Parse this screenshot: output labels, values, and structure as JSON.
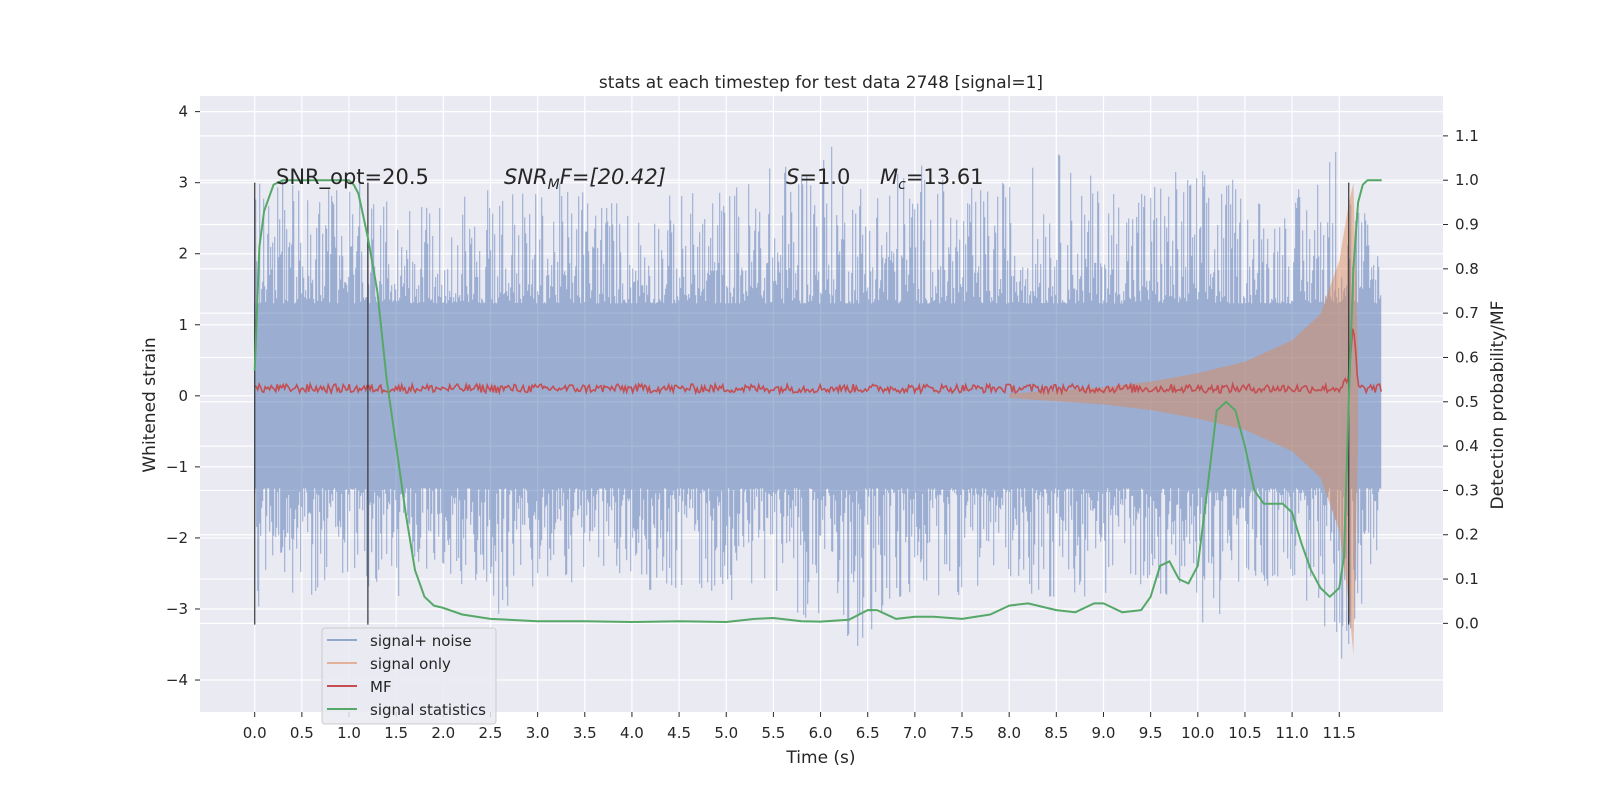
{
  "chart_data": {
    "type": "line",
    "title": "stats at each timestep for test data 2748 [signal=1]",
    "xlabel": "Time (s)",
    "ylabel_left": "Whitened strain",
    "ylabel_right": "Detection probability/MF",
    "xlim": [
      -0.58,
      12.6
    ],
    "ylim_left": [
      -4.45,
      4.22
    ],
    "ylim_right": [
      -0.2,
      1.19
    ],
    "x_ticks": [
      0.0,
      0.5,
      1.0,
      1.5,
      2.0,
      2.5,
      3.0,
      3.5,
      4.0,
      4.5,
      5.0,
      5.5,
      6.0,
      6.5,
      7.0,
      7.5,
      8.0,
      8.5,
      9.0,
      9.5,
      10.0,
      10.5,
      11.0,
      11.5
    ],
    "x_tick_labels": [
      "0.0",
      "0.5",
      "1.0",
      "1.5",
      "2.0",
      "2.5",
      "3.0",
      "3.5",
      "4.0",
      "4.5",
      "5.0",
      "5.5",
      "6.0",
      "6.5",
      "7.0",
      "7.5",
      "8.0",
      "8.5",
      "9.0",
      "9.5",
      "10.0",
      "10.5",
      "11.0",
      "11.5"
    ],
    "y_ticks_left": [
      -4,
      -3,
      -2,
      -1,
      0,
      1,
      2,
      3,
      4
    ],
    "y_tick_labels_left": [
      "−4",
      "−3",
      "−2",
      "−1",
      "0",
      "1",
      "2",
      "3",
      "4"
    ],
    "y_ticks_right": [
      0.0,
      0.1,
      0.2,
      0.3,
      0.4,
      0.5,
      0.6,
      0.7,
      0.8,
      0.9,
      1.0,
      1.1
    ],
    "y_tick_labels_right": [
      "0.0",
      "0.1",
      "0.2",
      "0.3",
      "0.4",
      "0.5",
      "0.6",
      "0.7",
      "0.8",
      "0.9",
      "1.0",
      "1.1"
    ],
    "grid": true,
    "legend_position": "lower-left",
    "annotations": {
      "snr_opt": "SNR_opt=20.5",
      "snr_mf_main": "SNR",
      "snr_mf_sub": "M",
      "snr_mf_rest": "F=[20.42]",
      "s_main": "S",
      "s_rest": "=1.0",
      "mc_main": "M",
      "mc_sub": "c",
      "mc_rest": "=13.61"
    },
    "vertical_markers": [
      {
        "x": 0.0,
        "ymin": -3.22,
        "ymax": 3.0
      },
      {
        "x": 1.2,
        "ymin": -3.22,
        "ymax": 3.0
      },
      {
        "x": 11.6,
        "ymin": -3.22,
        "ymax": 3.0
      }
    ],
    "series": [
      {
        "name": "signal+ noise",
        "color": "#4c72b0",
        "axis": "left",
        "envelope_x": [
          0.0,
          0.5,
          1.0,
          1.5,
          2.0,
          2.5,
          3.0,
          3.5,
          4.0,
          4.5,
          5.0,
          5.5,
          6.0,
          6.5,
          7.0,
          7.5,
          8.0,
          8.5,
          9.0,
          9.5,
          10.0,
          10.5,
          11.0,
          11.5,
          11.95
        ],
        "envelope_max": [
          3.0,
          3.3,
          3.1,
          2.7,
          2.9,
          3.2,
          2.9,
          3.1,
          2.7,
          2.9,
          3.0,
          3.3,
          3.7,
          3.1,
          3.4,
          2.9,
          3.1,
          3.5,
          3.0,
          3.2,
          3.3,
          3.0,
          2.8,
          3.8,
          2.1
        ],
        "envelope_min": [
          -3.2,
          -2.9,
          -2.6,
          -2.9,
          -2.5,
          -3.2,
          -2.8,
          -2.6,
          -2.7,
          -2.8,
          -2.9,
          -2.7,
          -3.4,
          -3.6,
          -2.9,
          -2.8,
          -2.6,
          -3.0,
          -2.8,
          -2.7,
          -3.3,
          -2.9,
          -2.6,
          -4.0,
          -2.0
        ]
      },
      {
        "name": "signal only",
        "color": "#dd8452",
        "axis": "left",
        "envelope_x": [
          8.0,
          9.0,
          9.5,
          10.0,
          10.5,
          11.0,
          11.3,
          11.5,
          11.6,
          11.65,
          11.7
        ],
        "envelope_max": [
          0.03,
          0.12,
          0.2,
          0.32,
          0.48,
          0.78,
          1.15,
          1.9,
          2.7,
          3.0,
          0.6
        ],
        "envelope_min": [
          -0.03,
          -0.12,
          -0.2,
          -0.32,
          -0.48,
          -0.78,
          -1.15,
          -1.9,
          -2.9,
          -3.65,
          -0.6
        ]
      },
      {
        "name": "MF",
        "color": "#c44e52",
        "axis": "right",
        "x": [
          0.0,
          0.5,
          1.0,
          1.5,
          2.0,
          2.5,
          3.0,
          3.5,
          4.0,
          4.5,
          5.0,
          5.5,
          6.0,
          6.5,
          7.0,
          7.5,
          8.0,
          8.5,
          9.0,
          9.5,
          10.0,
          10.5,
          11.0,
          11.5,
          11.6,
          11.65,
          11.7,
          11.95
        ],
        "y": [
          0.53,
          0.53,
          0.53,
          0.53,
          0.53,
          0.53,
          0.53,
          0.53,
          0.53,
          0.53,
          0.53,
          0.53,
          0.53,
          0.53,
          0.53,
          0.53,
          0.53,
          0.53,
          0.53,
          0.53,
          0.53,
          0.53,
          0.53,
          0.53,
          0.55,
          0.68,
          0.53,
          0.53
        ]
      },
      {
        "name": "signal statistics",
        "color": "#55a868",
        "axis": "right",
        "x": [
          0.0,
          0.05,
          0.1,
          0.15,
          0.2,
          0.3,
          0.5,
          0.8,
          1.0,
          1.05,
          1.1,
          1.15,
          1.2,
          1.3,
          1.4,
          1.5,
          1.6,
          1.7,
          1.8,
          1.9,
          2.0,
          2.2,
          2.5,
          3.0,
          3.5,
          4.0,
          4.5,
          5.0,
          5.3,
          5.5,
          5.8,
          6.0,
          6.3,
          6.5,
          6.6,
          6.8,
          7.0,
          7.2,
          7.5,
          7.8,
          8.0,
          8.2,
          8.5,
          8.7,
          8.9,
          9.0,
          9.2,
          9.4,
          9.5,
          9.6,
          9.7,
          9.8,
          9.9,
          10.0,
          10.1,
          10.2,
          10.3,
          10.4,
          10.5,
          10.6,
          10.7,
          10.8,
          10.9,
          11.0,
          11.1,
          11.2,
          11.3,
          11.4,
          11.5,
          11.55,
          11.6,
          11.65,
          11.7,
          11.75,
          11.8,
          11.85,
          11.9,
          11.95
        ],
        "y": [
          0.57,
          0.85,
          0.93,
          0.96,
          0.99,
          1.0,
          1.0,
          1.0,
          1.0,
          0.99,
          0.97,
          0.92,
          0.87,
          0.75,
          0.55,
          0.4,
          0.25,
          0.12,
          0.06,
          0.04,
          0.035,
          0.02,
          0.01,
          0.005,
          0.005,
          0.003,
          0.005,
          0.003,
          0.01,
          0.012,
          0.005,
          0.004,
          0.008,
          0.03,
          0.03,
          0.01,
          0.015,
          0.015,
          0.01,
          0.02,
          0.04,
          0.045,
          0.03,
          0.025,
          0.045,
          0.045,
          0.025,
          0.03,
          0.06,
          0.13,
          0.14,
          0.1,
          0.09,
          0.13,
          0.3,
          0.48,
          0.5,
          0.48,
          0.4,
          0.3,
          0.27,
          0.27,
          0.27,
          0.25,
          0.18,
          0.12,
          0.08,
          0.06,
          0.08,
          0.15,
          0.5,
          0.8,
          0.95,
          0.99,
          1.0,
          1.0,
          1.0,
          1.0
        ]
      }
    ]
  }
}
